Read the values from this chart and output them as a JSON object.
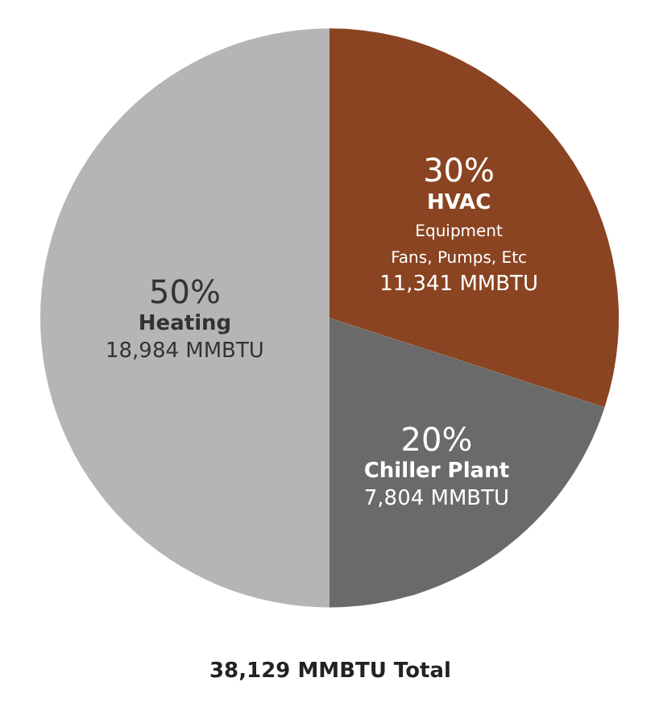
{
  "chart_data": {
    "type": "pie",
    "categories": [
      "HVAC\nEquipment\nFans, Pumps, Etc",
      "Chiller Plant",
      "Heating"
    ],
    "values": [
      30,
      20,
      50
    ],
    "value_labels": [
      "30%\n11,341 MMBTU",
      "20%\n7,804 MMBTU",
      "50%\n18,984 MMBTU"
    ],
    "colors": [
      "#8a4421",
      "#6a6a6a",
      "#b5b5b5"
    ],
    "annotations": [
      "38,129 MMBTU Total"
    ],
    "legend": false
  }
}
